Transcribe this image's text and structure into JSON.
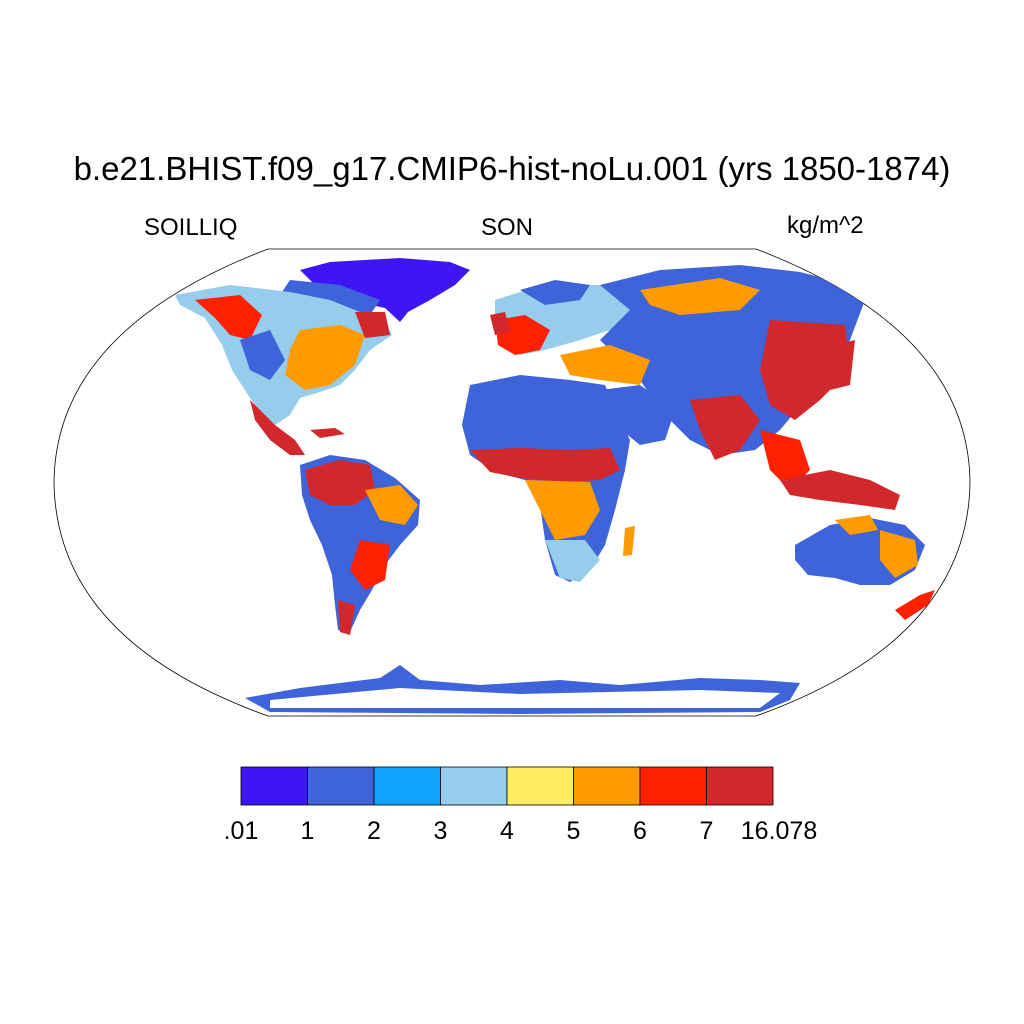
{
  "plot": {
    "title": "b.e21.BHIST.f09_g17.CMIP6-hist-noLu.001 (yrs 1850-1874)",
    "variable": "SOILLIQ",
    "season": "SON",
    "units": "kg/m^2",
    "projection": "robinson"
  },
  "colorbar": {
    "bins": [
      {
        "color": "#3e16f5",
        "from": ".01",
        "to": "1"
      },
      {
        "color": "#3f63d9",
        "from": "1",
        "to": "2"
      },
      {
        "color": "#11a4ff",
        "from": "2",
        "to": "3"
      },
      {
        "color": "#97cdec",
        "from": "3",
        "to": "4"
      },
      {
        "color": "#ffed5f",
        "from": "4",
        "to": "5"
      },
      {
        "color": "#ff9b00",
        "from": "5",
        "to": "6"
      },
      {
        "color": "#ff2000",
        "from": "6",
        "to": "7"
      },
      {
        "color": "#d2282b",
        "from": "7",
        "to": "16.078"
      }
    ],
    "tick_labels": [
      ".01",
      "1",
      "2",
      "3",
      "4",
      "5",
      "6",
      "7",
      "16.078"
    ]
  }
}
